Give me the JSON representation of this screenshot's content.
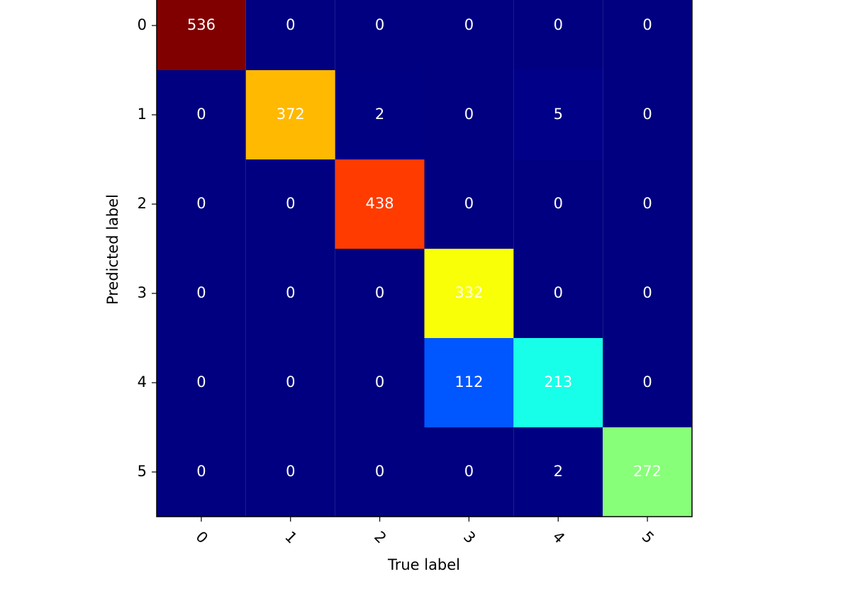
{
  "chart_data": {
    "type": "heatmap",
    "colormap": "jet",
    "xlabel": "True label",
    "ylabel": "Predicted label",
    "xlim": [
      -0.5,
      5.5
    ],
    "ylim": [
      5.5,
      -0.5
    ],
    "xticks": [
      0,
      1,
      2,
      3,
      4,
      5
    ],
    "yticks": [
      0,
      1,
      2,
      3,
      4,
      5
    ],
    "values": [
      [
        536,
        0,
        0,
        0,
        0,
        0
      ],
      [
        0,
        372,
        2,
        0,
        5,
        0
      ],
      [
        0,
        0,
        438,
        0,
        0,
        0
      ],
      [
        0,
        0,
        0,
        332,
        0,
        0
      ],
      [
        0,
        0,
        0,
        112,
        213,
        0
      ],
      [
        0,
        0,
        0,
        0,
        2,
        272
      ]
    ]
  }
}
